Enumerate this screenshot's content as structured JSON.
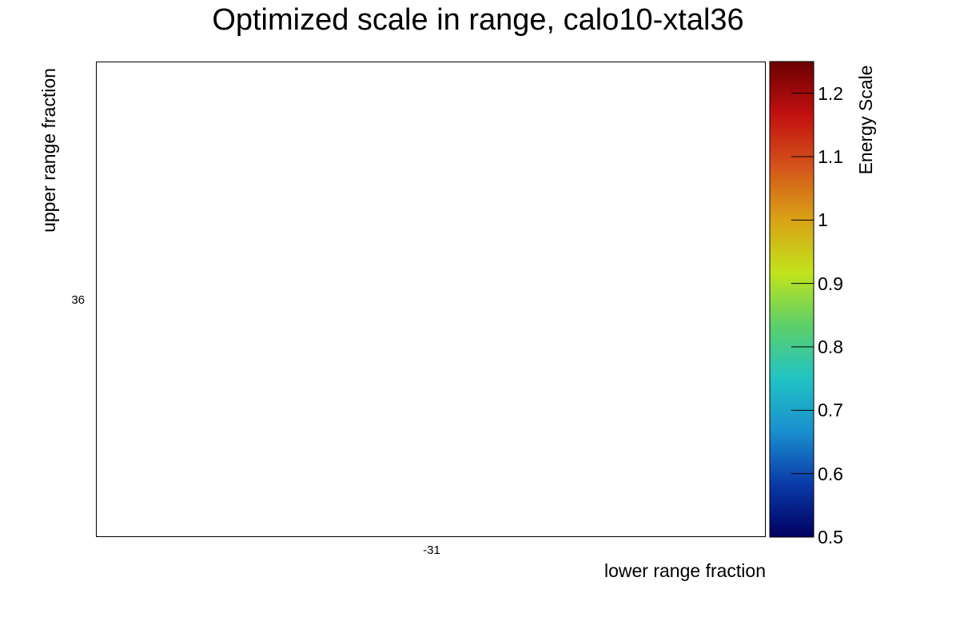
{
  "chart_data": {
    "type": "heatmap",
    "title": "Optimized scale in range, calo10-xtal36",
    "xlabel": "lower range fraction",
    "ylabel": "upper range fraction",
    "x_tick_labels": [
      "-31"
    ],
    "y_tick_labels": [
      "36"
    ],
    "cells": [],
    "grid": false,
    "colorbar": {
      "title": "Energy Scale",
      "range": [
        0.5,
        1.25
      ],
      "ticks": [
        0.5,
        0.6,
        0.7,
        0.8,
        0.9,
        1.0,
        1.1,
        1.2
      ],
      "tick_labels": [
        "0.5",
        "0.6",
        "0.7",
        "0.8",
        "0.9",
        "1",
        "1.1",
        "1.2"
      ],
      "palette": [
        "#000060",
        "#0a3aa8",
        "#1a8fcf",
        "#21c3c4",
        "#5ccf6a",
        "#c2e31c",
        "#d9a316",
        "#d4541a",
        "#c21010",
        "#6b0000"
      ]
    }
  }
}
